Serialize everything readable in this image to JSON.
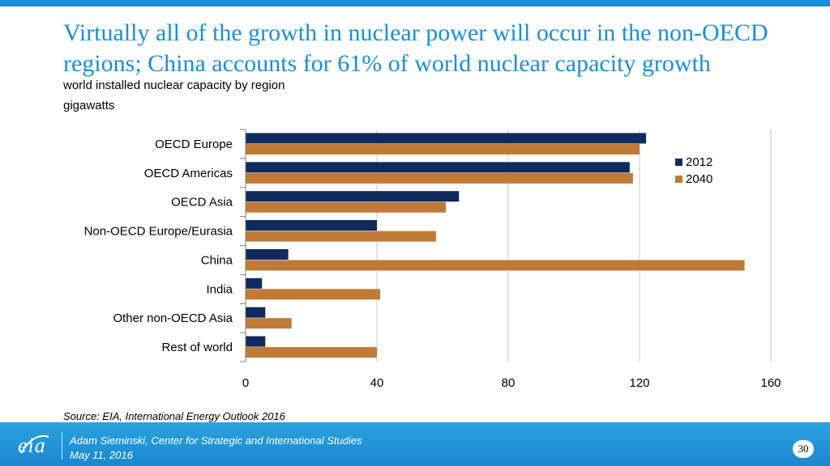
{
  "slide": {
    "title": "Virtually all of the growth in nuclear power will occur in the non-OECD regions; China accounts for 61% of world nuclear capacity growth",
    "subtitle": "world installed nuclear capacity by region",
    "units": "gigawatts",
    "source": "Source:  EIA, International Energy Outlook 2016",
    "page_number": "30"
  },
  "footer": {
    "logo_text": "eia",
    "presenter": "Adam Sieminski, Center for Strategic and International Studies",
    "date": "May 11, 2016"
  },
  "colors": {
    "accent": "#1a8fd6",
    "series_2012": "#0f2a5c",
    "series_2040": "#c07a35"
  },
  "chart_data": {
    "type": "bar",
    "orientation": "horizontal",
    "title": "world installed nuclear capacity by region",
    "xlabel": "",
    "ylabel": "",
    "xlim": [
      0,
      160
    ],
    "xticks": [
      0,
      40,
      80,
      120,
      160
    ],
    "grid": true,
    "legend_position": "top-right",
    "categories": [
      "OECD Europe",
      "OECD Americas",
      "OECD Asia",
      "Non-OECD Europe/Eurasia",
      "China",
      "India",
      "Other non-OECD Asia",
      "Rest of world"
    ],
    "series": [
      {
        "name": "2012",
        "color": "#0f2a5c",
        "values": [
          122,
          117,
          65,
          40,
          13,
          5,
          6,
          6
        ]
      },
      {
        "name": "2040",
        "color": "#c07a35",
        "values": [
          120,
          118,
          61,
          58,
          152,
          41,
          14,
          40
        ]
      }
    ]
  }
}
